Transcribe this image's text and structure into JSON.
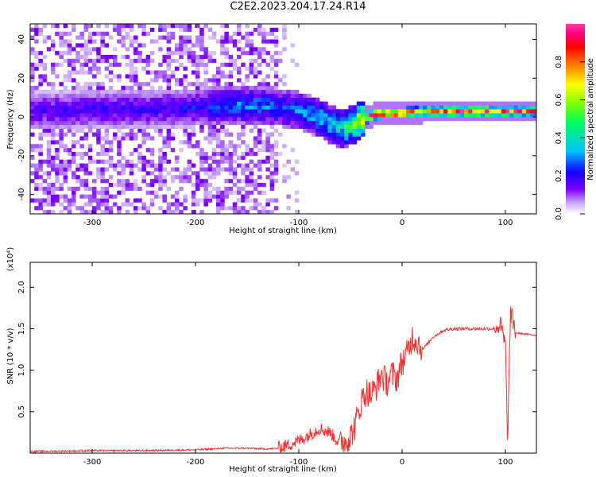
{
  "title": "C2E2.2023.204.17.24.R14",
  "chart_data": [
    {
      "type": "heatmap",
      "xlabel": "Height of straight line (km)",
      "ylabel": "Frequency (Hz)",
      "xlim": [
        -360,
        130
      ],
      "ylim": [
        -50,
        48
      ],
      "xticks": [
        -300,
        -200,
        -100,
        0,
        100
      ],
      "yticks": [
        -40,
        -20,
        0,
        20,
        40
      ],
      "colorbar": {
        "label": "Normalized spectral amplitude",
        "range": [
          0.0,
          1.0
        ],
        "ticks": [
          0.0,
          0.2,
          0.4,
          0.6,
          0.8
        ],
        "colors": [
          "#ffffff",
          "#c6a3f8",
          "#7a00ff",
          "#1500ff",
          "#00c3ff",
          "#00ff60",
          "#7fff00",
          "#ffff00",
          "#ff8000",
          "#ff0000",
          "#ff0080",
          "#ff3fa5"
        ]
      },
      "center_frequency_track": {
        "height_km": [
          -360,
          -300,
          -250,
          -200,
          -170,
          -140,
          -120,
          -100,
          -80,
          -70,
          -60,
          -50,
          -40,
          -30,
          -20,
          -10,
          0,
          20,
          50,
          80,
          100,
          130
        ],
        "frequency_hz": [
          2,
          3,
          3,
          4,
          5,
          5,
          4,
          2,
          -2,
          -5,
          -7,
          -5,
          -2,
          0,
          1,
          1,
          1,
          2,
          2,
          2,
          2,
          2
        ],
        "peak_amplitude": [
          0.18,
          0.2,
          0.2,
          0.22,
          0.3,
          0.32,
          0.28,
          0.3,
          0.38,
          0.38,
          0.42,
          0.55,
          0.75,
          0.95,
          0.95,
          0.95,
          0.9,
          0.8,
          0.9,
          0.9,
          0.85,
          0.8
        ]
      }
    },
    {
      "type": "line",
      "xlabel": "Height of straight line (km)",
      "ylabel": "SNR (10 * v/v)",
      "y_multiplier": "(x10⁴)",
      "xlim": [
        -360,
        130
      ],
      "ylim": [
        0,
        2.3
      ],
      "xticks": [
        -300,
        -200,
        -100,
        0,
        100
      ],
      "yticks": [
        0.5,
        1.0,
        1.5,
        2.0
      ],
      "color": "#ee3333",
      "x": [
        -360,
        -300,
        -250,
        -200,
        -170,
        -150,
        -130,
        -120,
        -110,
        -100,
        -90,
        -80,
        -70,
        -60,
        -50,
        -45,
        -40,
        -35,
        -30,
        -25,
        -20,
        -15,
        -10,
        -5,
        0,
        5,
        10,
        15,
        20,
        30,
        40,
        50,
        70,
        90,
        95,
        100,
        102,
        105,
        110,
        130
      ],
      "values": [
        0.02,
        0.03,
        0.03,
        0.04,
        0.06,
        0.06,
        0.05,
        0.06,
        0.1,
        0.15,
        0.22,
        0.3,
        0.25,
        0.12,
        0.2,
        0.35,
        0.6,
        0.75,
        0.7,
        0.8,
        0.95,
        0.85,
        0.95,
        0.9,
        1.1,
        1.2,
        1.4,
        1.35,
        1.25,
        1.4,
        1.48,
        1.5,
        1.5,
        1.5,
        1.55,
        1.3,
        0.15,
        1.7,
        1.45,
        1.42
      ]
    }
  ]
}
